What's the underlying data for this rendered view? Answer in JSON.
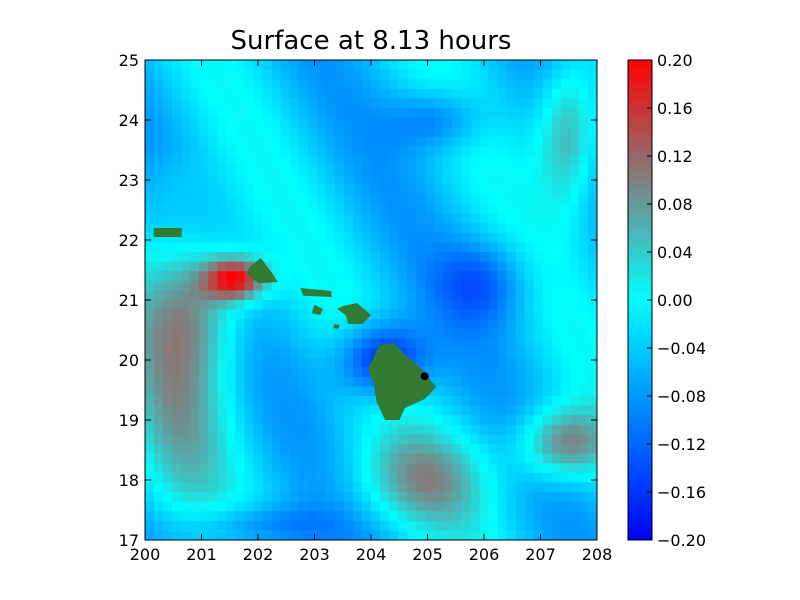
{
  "chart_data": {
    "type": "heatmap",
    "title": "Surface at 8.13 hours",
    "xlabel": "",
    "ylabel": "",
    "xlim": [
      200,
      208
    ],
    "ylim": [
      17,
      25
    ],
    "x_ticks": [
      "200",
      "201",
      "202",
      "203",
      "204",
      "205",
      "206",
      "207",
      "208"
    ],
    "y_ticks": [
      "17",
      "18",
      "19",
      "20",
      "21",
      "22",
      "23",
      "24",
      "25"
    ],
    "colorbar": {
      "vmin": -0.2,
      "vmax": 0.2,
      "ticks": [
        "0.20",
        "0.16",
        "0.12",
        "0.08",
        "0.04",
        "0.00",
        "−0.04",
        "−0.08",
        "−0.12",
        "−0.16",
        "−0.20"
      ],
      "tick_values": [
        0.2,
        0.16,
        0.12,
        0.08,
        0.04,
        0.0,
        -0.04,
        -0.08,
        -0.12,
        -0.16,
        -0.2
      ],
      "colors": [
        "#0000ff",
        "#0080ff",
        "#00ffff",
        "#808080",
        "#ff0000"
      ]
    },
    "land_color": "#337a33",
    "gauge_point": {
      "x": 204.95,
      "y": 19.73
    },
    "islands": [
      {
        "name": "Hawaii",
        "outline": [
          [
            204.15,
            20.25
          ],
          [
            204.4,
            20.28
          ],
          [
            204.65,
            20.05
          ],
          [
            204.9,
            19.85
          ],
          [
            205.15,
            19.55
          ],
          [
            204.95,
            19.35
          ],
          [
            204.6,
            19.2
          ],
          [
            204.5,
            19.0
          ],
          [
            204.25,
            19.0
          ],
          [
            204.1,
            19.3
          ],
          [
            204.05,
            19.6
          ],
          [
            203.95,
            19.85
          ],
          [
            204.05,
            20.05
          ]
        ]
      },
      {
        "name": "Maui",
        "outline": [
          [
            203.5,
            20.9
          ],
          [
            203.75,
            20.95
          ],
          [
            204.0,
            20.75
          ],
          [
            203.85,
            20.6
          ],
          [
            203.6,
            20.6
          ],
          [
            203.55,
            20.75
          ],
          [
            203.4,
            20.85
          ]
        ]
      },
      {
        "name": "Molokai",
        "outline": [
          [
            202.75,
            21.2
          ],
          [
            203.3,
            21.15
          ],
          [
            203.3,
            21.05
          ],
          [
            202.8,
            21.07
          ]
        ]
      },
      {
        "name": "Lanai",
        "outline": [
          [
            203.0,
            20.92
          ],
          [
            203.15,
            20.85
          ],
          [
            203.1,
            20.75
          ],
          [
            202.95,
            20.78
          ]
        ]
      },
      {
        "name": "Kahoolawe",
        "outline": [
          [
            203.35,
            20.6
          ],
          [
            203.45,
            20.58
          ],
          [
            203.42,
            20.52
          ],
          [
            203.33,
            20.53
          ]
        ]
      },
      {
        "name": "Oahu",
        "outline": [
          [
            201.85,
            21.55
          ],
          [
            202.05,
            21.7
          ],
          [
            202.25,
            21.45
          ],
          [
            202.35,
            21.3
          ],
          [
            202.0,
            21.28
          ],
          [
            201.8,
            21.45
          ]
        ]
      },
      {
        "name": "Kauai",
        "outline": [
          [
            200.15,
            22.2
          ],
          [
            200.65,
            22.2
          ],
          [
            200.65,
            22.05
          ],
          [
            200.15,
            22.05
          ]
        ]
      }
    ]
  }
}
